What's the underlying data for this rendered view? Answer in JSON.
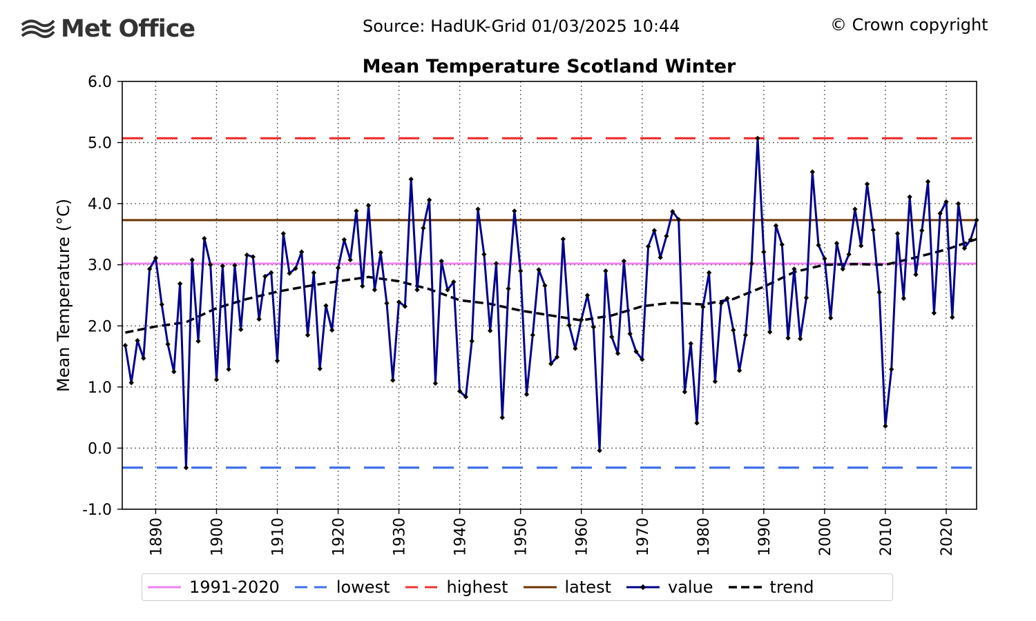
{
  "header": {
    "logo_text": "Met Office",
    "source": "Source: HadUK-Grid 01/03/2025 10:44",
    "copyright": "© Crown copyright"
  },
  "chart_data": {
    "type": "line",
    "title": "Mean Temperature Scotland Winter",
    "xlabel": "",
    "ylabel": "Mean Temperature (°C)",
    "xlim": [
      1884.5,
      2025
    ],
    "ylim": [
      -1.0,
      6.0
    ],
    "yticks": [
      -1.0,
      0.0,
      1.0,
      2.0,
      3.0,
      4.0,
      5.0,
      6.0
    ],
    "ytick_labels": [
      "-1.0",
      "0.0",
      "1.0",
      "2.0",
      "3.0",
      "4.0",
      "5.0",
      "6.0"
    ],
    "xticks": [
      1890,
      1900,
      1910,
      1920,
      1930,
      1940,
      1950,
      1960,
      1970,
      1980,
      1990,
      2000,
      2010,
      2020
    ],
    "xtick_labels": [
      "1890",
      "1900",
      "1910",
      "1920",
      "1930",
      "1940",
      "1950",
      "1960",
      "1970",
      "1980",
      "1990",
      "2000",
      "2010",
      "2020"
    ],
    "grid": true,
    "reference_lines": {
      "baseline_1991_2020": 3.02,
      "lowest": -0.32,
      "highest": 5.07,
      "latest": 3.73
    },
    "series": [
      {
        "name": "value",
        "color": "#00008b",
        "x": [
          1885,
          1886,
          1887,
          1888,
          1889,
          1890,
          1891,
          1892,
          1893,
          1894,
          1895,
          1896,
          1897,
          1898,
          1899,
          1900,
          1901,
          1902,
          1903,
          1904,
          1905,
          1906,
          1907,
          1908,
          1909,
          1910,
          1911,
          1912,
          1913,
          1914,
          1915,
          1916,
          1917,
          1918,
          1919,
          1920,
          1921,
          1922,
          1923,
          1924,
          1925,
          1926,
          1927,
          1928,
          1929,
          1930,
          1931,
          1932,
          1933,
          1934,
          1935,
          1936,
          1937,
          1938,
          1939,
          1940,
          1941,
          1942,
          1943,
          1944,
          1945,
          1946,
          1947,
          1948,
          1949,
          1950,
          1951,
          1952,
          1953,
          1954,
          1955,
          1956,
          1957,
          1958,
          1959,
          1960,
          1961,
          1962,
          1963,
          1964,
          1965,
          1966,
          1967,
          1968,
          1969,
          1970,
          1971,
          1972,
          1973,
          1974,
          1975,
          1976,
          1977,
          1978,
          1979,
          1980,
          1981,
          1982,
          1983,
          1984,
          1985,
          1986,
          1987,
          1988,
          1989,
          1990,
          1991,
          1992,
          1993,
          1994,
          1995,
          1996,
          1997,
          1998,
          1999,
          2000,
          2001,
          2002,
          2003,
          2004,
          2005,
          2006,
          2007,
          2008,
          2009,
          2010,
          2011,
          2012,
          2013,
          2014,
          2015,
          2016,
          2017,
          2018,
          2019,
          2020,
          2021,
          2022,
          2023,
          2024,
          2025
        ],
        "values": [
          1.68,
          1.07,
          1.76,
          1.47,
          2.93,
          3.11,
          2.35,
          1.7,
          1.25,
          2.69,
          -0.32,
          3.08,
          1.75,
          3.43,
          3.0,
          1.12,
          2.98,
          1.29,
          2.99,
          1.94,
          3.16,
          3.13,
          2.11,
          2.81,
          2.87,
          1.43,
          3.51,
          2.86,
          2.94,
          3.21,
          1.85,
          2.87,
          1.3,
          2.33,
          1.93,
          2.95,
          3.41,
          3.08,
          3.88,
          2.65,
          3.97,
          2.59,
          3.2,
          2.37,
          1.11,
          2.39,
          2.32,
          4.4,
          2.59,
          3.6,
          4.06,
          1.06,
          3.06,
          2.59,
          2.72,
          0.93,
          0.84,
          1.75,
          3.91,
          3.17,
          1.92,
          3.02,
          0.5,
          2.61,
          3.88,
          2.9,
          0.88,
          1.85,
          2.92,
          2.66,
          1.38,
          1.49,
          3.42,
          2.01,
          1.63,
          2.1,
          2.5,
          1.98,
          -0.04,
          2.9,
          1.82,
          1.55,
          3.06,
          1.87,
          1.58,
          1.45,
          3.3,
          3.56,
          3.12,
          3.47,
          3.87,
          3.74,
          0.92,
          1.71,
          0.41,
          2.31,
          2.87,
          1.09,
          2.37,
          2.45,
          1.93,
          1.27,
          1.85,
          3.02,
          5.07,
          3.21,
          1.9,
          3.64,
          3.33,
          1.8,
          2.93,
          1.79,
          2.46,
          4.52,
          3.32,
          3.1,
          2.13,
          3.35,
          2.93,
          3.17,
          3.91,
          3.31,
          4.32,
          3.57,
          2.55,
          0.36,
          1.29,
          3.51,
          2.45,
          4.11,
          2.84,
          3.56,
          4.36,
          2.21,
          3.84,
          4.03,
          2.14,
          4.0,
          3.27,
          3.41,
          3.73
        ]
      },
      {
        "name": "trend",
        "color": "#000000",
        "x": [
          1885,
          1890,
          1895,
          1900,
          1905,
          1910,
          1915,
          1920,
          1925,
          1930,
          1935,
          1940,
          1945,
          1950,
          1955,
          1960,
          1965,
          1970,
          1975,
          1980,
          1985,
          1990,
          1995,
          2000,
          2005,
          2010,
          2015,
          2020,
          2025
        ],
        "values": [
          1.89,
          1.99,
          2.06,
          2.29,
          2.44,
          2.56,
          2.65,
          2.73,
          2.8,
          2.73,
          2.6,
          2.42,
          2.36,
          2.25,
          2.17,
          2.09,
          2.17,
          2.32,
          2.38,
          2.35,
          2.44,
          2.64,
          2.88,
          3.0,
          3.01,
          3.0,
          3.12,
          3.25,
          3.42
        ]
      }
    ],
    "legend": {
      "placement": "bottom-center",
      "entries": [
        "1991-2020",
        "lowest",
        "highest",
        "latest",
        "value",
        "trend"
      ]
    },
    "colors": {
      "baseline": "#ee82ee",
      "lowest": "#3f6fe8",
      "highest": "#f03232",
      "latest": "#6b3200",
      "value": "#00008b",
      "trend": "#000000"
    }
  }
}
